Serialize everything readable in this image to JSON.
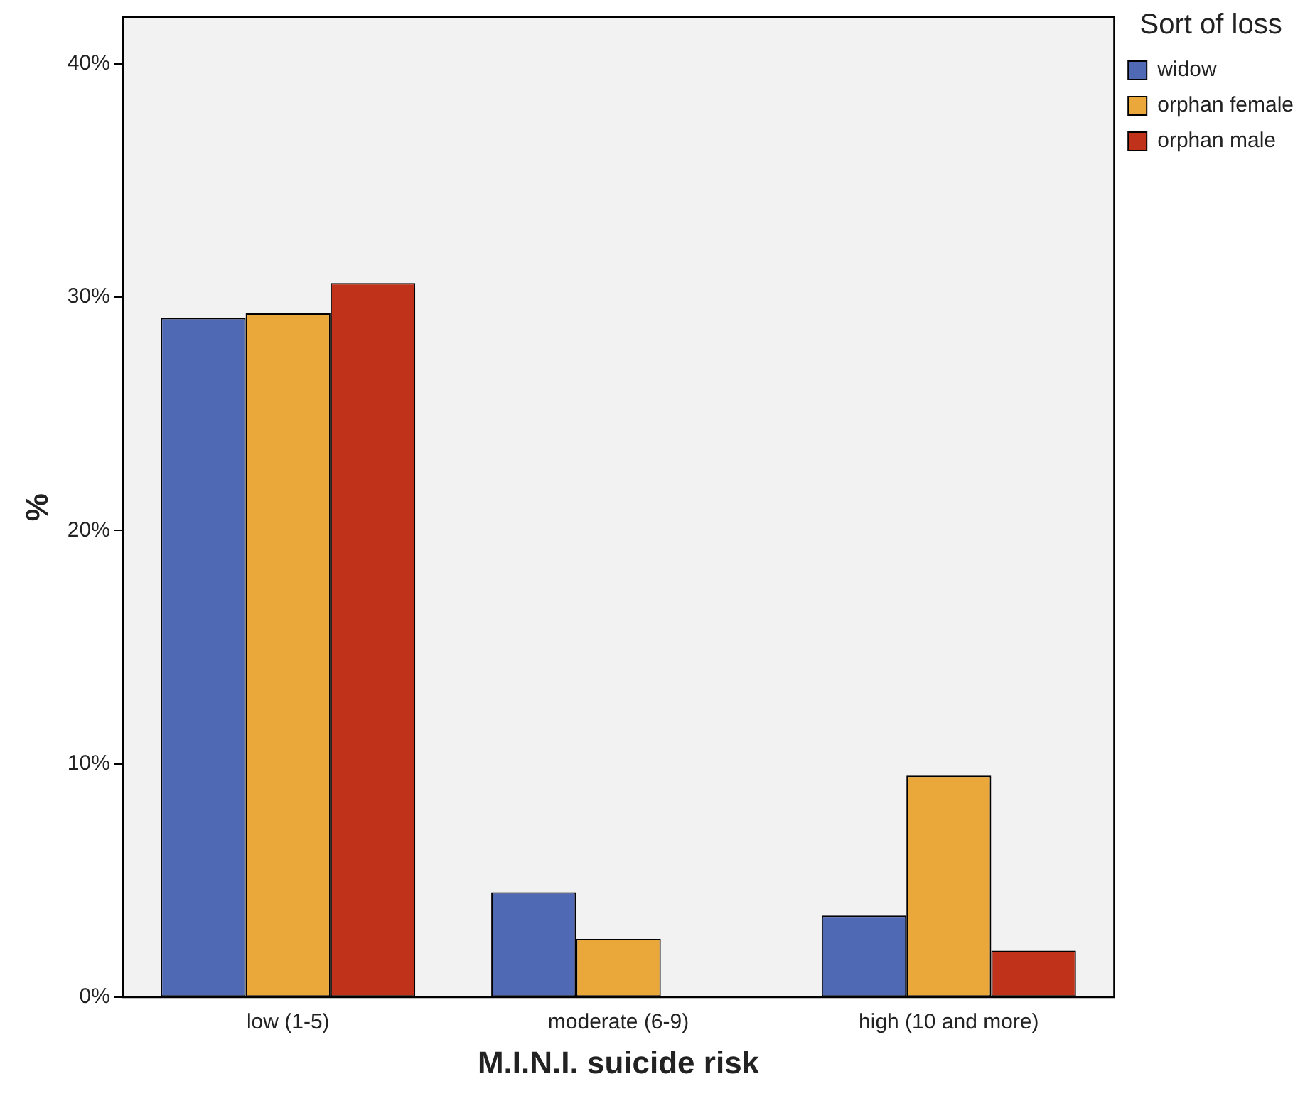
{
  "chart_data": {
    "type": "bar",
    "xlabel": "M.I.N.I. suicide risk",
    "ylabel": "%",
    "legend_title": "Sort of loss",
    "legend": "top right",
    "grid": false,
    "categories": [
      "low (1-5)",
      "moderate (6-9)",
      "high (10 and more)"
    ],
    "series": [
      {
        "name": "widow",
        "color": "#5069b5",
        "values": [
          29.1,
          4.5,
          3.5
        ]
      },
      {
        "name": "orphan female",
        "color": "#eba83a",
        "values": [
          29.3,
          2.5,
          9.5
        ]
      },
      {
        "name": "orphan male",
        "color": "#c0321a",
        "values": [
          30.6,
          0,
          2.0
        ]
      }
    ],
    "ylim": [
      0,
      42
    ],
    "yticks": [
      {
        "value": 0,
        "label": "0%"
      },
      {
        "value": 10,
        "label": "10%"
      },
      {
        "value": 20,
        "label": "20%"
      },
      {
        "value": 30,
        "label": "30%"
      },
      {
        "value": 40,
        "label": "40%"
      }
    ]
  }
}
